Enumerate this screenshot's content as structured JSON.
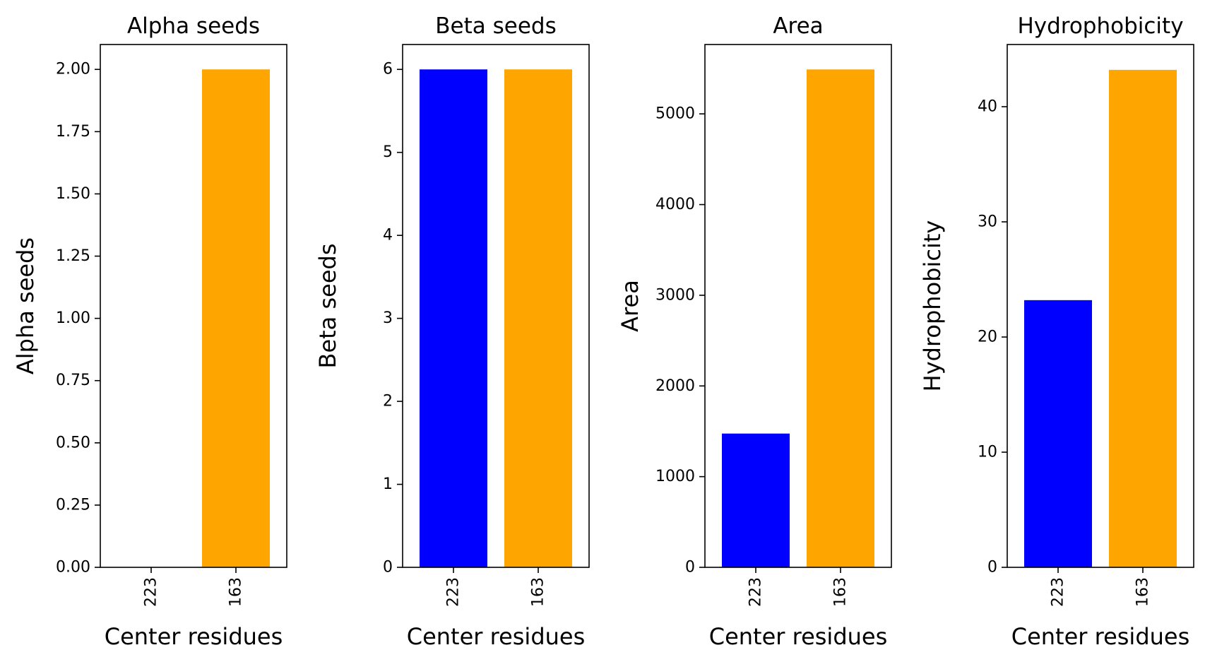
{
  "chart_data": [
    {
      "type": "bar",
      "title": "Alpha seeds",
      "xlabel": "Center residues",
      "ylabel": "Alpha seeds",
      "categories": [
        "223",
        "163"
      ],
      "values": [
        0,
        2
      ],
      "colors": [
        "#0000ff",
        "#ffa500"
      ],
      "ylim": [
        0,
        2.1
      ],
      "yticks": [
        0,
        0.25,
        0.5,
        0.75,
        1.0,
        1.25,
        1.5,
        1.75,
        2.0
      ],
      "ytick_labels": [
        "0.00",
        "0.25",
        "0.50",
        "0.75",
        "1.00",
        "1.25",
        "1.50",
        "1.75",
        "2.00"
      ]
    },
    {
      "type": "bar",
      "title": "Beta seeds",
      "xlabel": "Center residues",
      "ylabel": "Beta seeds",
      "categories": [
        "223",
        "163"
      ],
      "values": [
        6,
        6
      ],
      "colors": [
        "#0000ff",
        "#ffa500"
      ],
      "ylim": [
        0,
        6.3
      ],
      "yticks": [
        0,
        1,
        2,
        3,
        4,
        5,
        6
      ],
      "ytick_labels": [
        "0",
        "1",
        "2",
        "3",
        "4",
        "5",
        "6"
      ]
    },
    {
      "type": "bar",
      "title": "Area",
      "xlabel": "Center residues",
      "ylabel": "Area",
      "categories": [
        "223",
        "163"
      ],
      "values": [
        1475,
        5490
      ],
      "colors": [
        "#0000ff",
        "#ffa500"
      ],
      "ylim": [
        0,
        5765
      ],
      "yticks": [
        0,
        1000,
        2000,
        3000,
        4000,
        5000
      ],
      "ytick_labels": [
        "0",
        "1000",
        "2000",
        "3000",
        "4000",
        "5000"
      ]
    },
    {
      "type": "bar",
      "title": "Hydrophobicity",
      "xlabel": "Center residues",
      "ylabel": "Hydrophobicity",
      "categories": [
        "223",
        "163"
      ],
      "values": [
        23.2,
        43.2
      ],
      "colors": [
        "#0000ff",
        "#ffa500"
      ],
      "ylim": [
        0,
        45.4
      ],
      "yticks": [
        0,
        10,
        20,
        30,
        40
      ],
      "ytick_labels": [
        "0",
        "10",
        "20",
        "30",
        "40"
      ]
    }
  ]
}
